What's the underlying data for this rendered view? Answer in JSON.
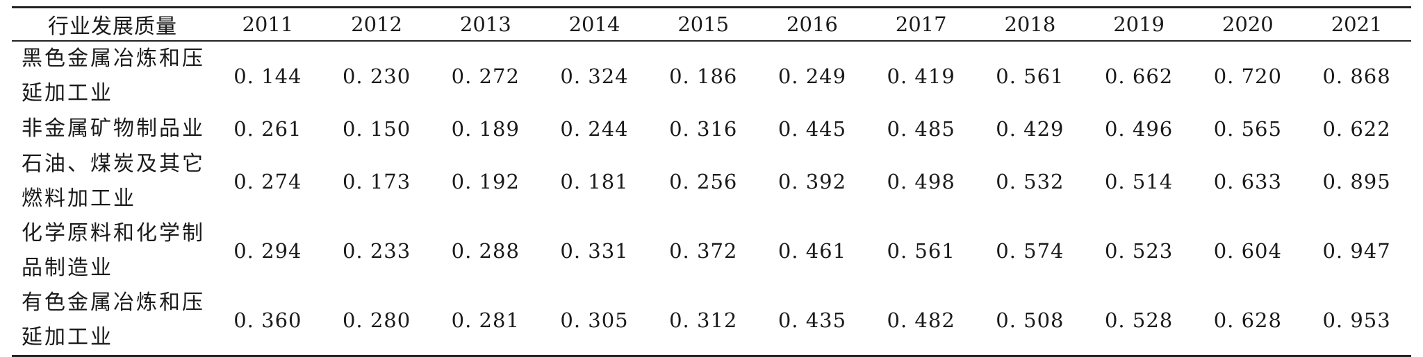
{
  "table": {
    "header": {
      "industry_label": "行业发展质量",
      "years": [
        "2011",
        "2012",
        "2013",
        "2014",
        "2015",
        "2016",
        "2017",
        "2018",
        "2019",
        "2020",
        "2021"
      ]
    },
    "rows": [
      {
        "industry": "黑色金属冶炼和压延加工业",
        "values": [
          "0. 144",
          "0. 230",
          "0. 272",
          "0. 324",
          "0. 186",
          "0. 249",
          "0. 419",
          "0. 561",
          "0. 662",
          "0. 720",
          "0. 868"
        ]
      },
      {
        "industry": "非金属矿物制品业",
        "values": [
          "0. 261",
          "0. 150",
          "0. 189",
          "0. 244",
          "0. 316",
          "0. 445",
          "0. 485",
          "0. 429",
          "0. 496",
          "0. 565",
          "0. 622"
        ]
      },
      {
        "industry": "石油、煤炭及其它燃料加工业",
        "values": [
          "0. 274",
          "0. 173",
          "0. 192",
          "0. 181",
          "0. 256",
          "0. 392",
          "0. 498",
          "0. 532",
          "0. 514",
          "0. 633",
          "0. 895"
        ]
      },
      {
        "industry": "化学原料和化学制品制造业",
        "values": [
          "0. 294",
          "0. 233",
          "0. 288",
          "0. 331",
          "0. 372",
          "0. 461",
          "0. 561",
          "0. 574",
          "0. 523",
          "0. 604",
          "0. 947"
        ]
      },
      {
        "industry": "有色金属冶炼和压延加工业",
        "values": [
          "0. 360",
          "0. 280",
          "0. 281",
          "0. 305",
          "0. 312",
          "0. 435",
          "0. 482",
          "0. 508",
          "0. 528",
          "0. 628",
          "0. 953"
        ]
      }
    ]
  }
}
